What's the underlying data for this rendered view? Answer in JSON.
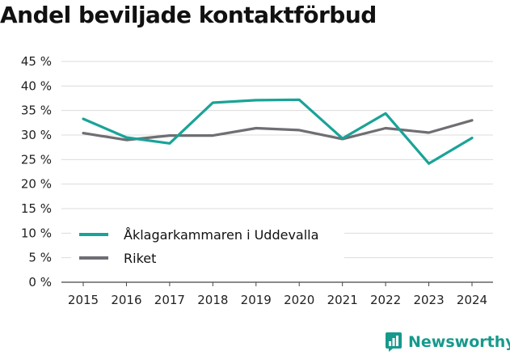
{
  "chart_data": {
    "type": "line",
    "title": "Andel beviljade kontaktförbud",
    "x": [
      "2015",
      "2016",
      "2017",
      "2018",
      "2019",
      "2020",
      "2021",
      "2022",
      "2023",
      "2024"
    ],
    "y_ticks": [
      "0 %",
      "5 %",
      "10 %",
      "15 %",
      "20 %",
      "25 %",
      "30 %",
      "35 %",
      "40 %",
      "45 %"
    ],
    "ylim": [
      0,
      45
    ],
    "grid": true,
    "legend_position": "bottom-left",
    "series": [
      {
        "name": "Åklagarkammaren i Uddevalla",
        "color": "#1aa398",
        "values": [
          33.3,
          29.5,
          28.3,
          36.6,
          37.1,
          37.2,
          29.3,
          34.4,
          24.2,
          29.4
        ]
      },
      {
        "name": "Riket",
        "color": "#6e6e73",
        "values": [
          30.4,
          29.0,
          29.9,
          29.9,
          31.4,
          31.0,
          29.2,
          31.4,
          30.5,
          33.0
        ]
      }
    ]
  },
  "brand": {
    "name": "Newsworthy",
    "icon": "bar-chart-logo-icon",
    "color": "#159a8c"
  }
}
